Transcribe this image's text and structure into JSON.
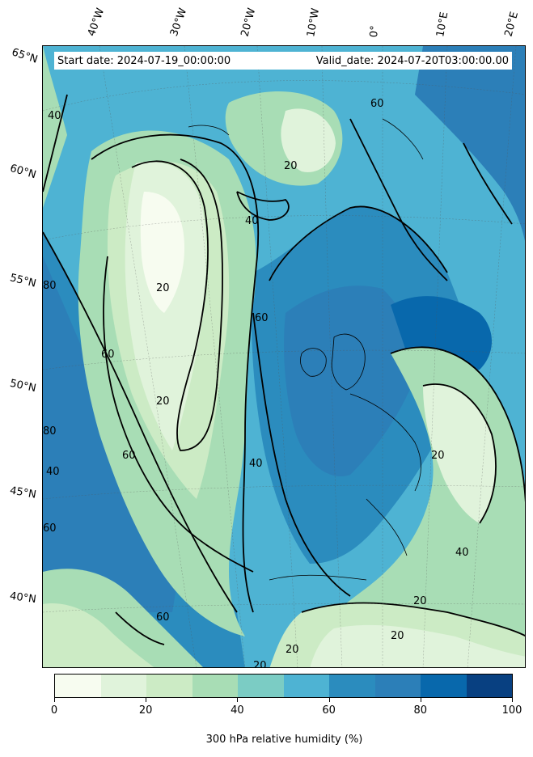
{
  "header": {
    "start_date": "Start date: 2024-07-19_00:00:00",
    "valid_date": "Valid_date: 2024-07-20T03:00:00.00"
  },
  "longitude_labels": [
    "40°W",
    "30°W",
    "20°W",
    "10°W",
    "0°",
    "10°E",
    "20°E"
  ],
  "latitude_labels": [
    "65°N",
    "60°N",
    "55°N",
    "50°N",
    "45°N",
    "40°N"
  ],
  "contour_labels": [
    "20",
    "40",
    "60",
    "80"
  ],
  "colorbar": {
    "title": "300 hPa relative humidity (%)",
    "ticks": [
      "0",
      "20",
      "40",
      "60",
      "80",
      "100"
    ],
    "colors": [
      "#f7fcf0",
      "#e0f3db",
      "#ccebc5",
      "#a8ddb5",
      "#7bccc4",
      "#4eb3d3",
      "#2b8cbe",
      "#2c7fb8",
      "#0868ac",
      "#084081"
    ]
  },
  "colors": {
    "low": "#e0f3db",
    "mid": "#a8ddb5",
    "high": "#2b8cbe",
    "very_high": "#0868ac"
  }
}
